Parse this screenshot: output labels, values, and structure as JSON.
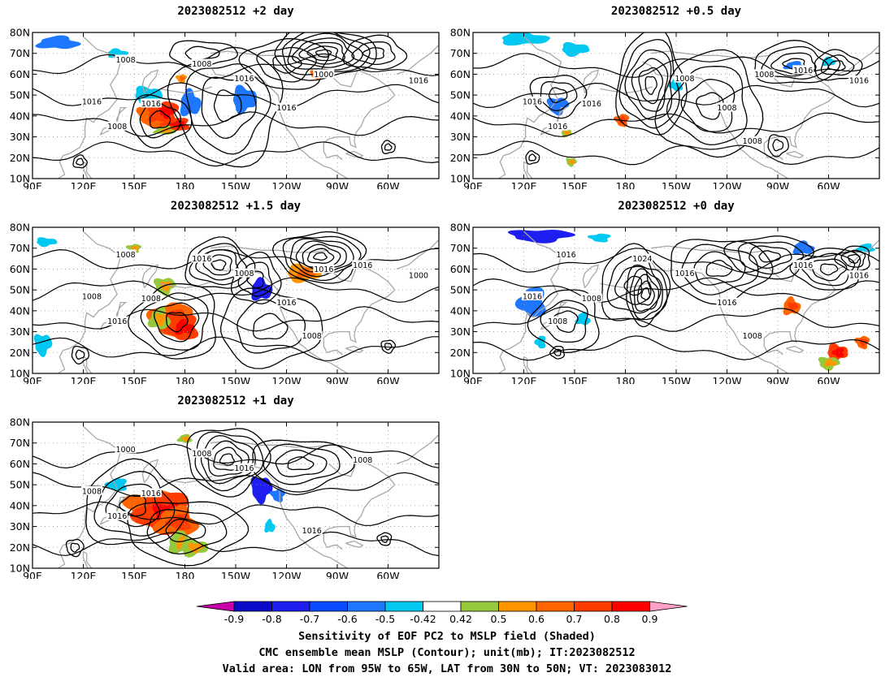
{
  "panels": [
    {
      "id": "p-plus2",
      "title": "2023082512 +2 day"
    },
    {
      "id": "p-plus05",
      "title": "2023082512 +0.5 day"
    },
    {
      "id": "p-plus15",
      "title": "2023082512 +1.5 day"
    },
    {
      "id": "p-plus0",
      "title": "2023082512 +0 day"
    },
    {
      "id": "p-plus1",
      "title": "2023082512 +1 day"
    }
  ],
  "axes": {
    "lat_labels": [
      "80N",
      "70N",
      "60N",
      "50N",
      "40N",
      "30N",
      "20N",
      "10N"
    ],
    "lon_labels": [
      "90E",
      "120E",
      "150E",
      "180",
      "150W",
      "120W",
      "90W",
      "60W"
    ]
  },
  "contour_labels": {
    "p-plus2": [
      "1008",
      "1008",
      "1016",
      "1016",
      "1016",
      "1000",
      "1016",
      "1016",
      "1008"
    ],
    "p-plus05": [
      "1008",
      "1016",
      "1016",
      "1008",
      "1016",
      "1008",
      "1016",
      "1008",
      "1016"
    ],
    "p-plus15": [
      "1008",
      "1016",
      "1000",
      "1016",
      "1016",
      "1008",
      "1016",
      "1008",
      "1016",
      "1008",
      "1008"
    ],
    "p-plus0": [
      "1016",
      "1016",
      "1008",
      "1008",
      "1016",
      "1016",
      "1024",
      "1016",
      "1008",
      "1016"
    ],
    "p-plus1": [
      "1016",
      "1016",
      "1008",
      "1000",
      "1008",
      "1016",
      "1016",
      "1008"
    ]
  },
  "colorbar": {
    "labels": [
      "-0.9",
      "-0.8",
      "-0.7",
      "-0.6",
      "-0.5",
      "-0.42",
      "0.42",
      "0.5",
      "0.6",
      "0.7",
      "0.8",
      "0.9"
    ],
    "colors": [
      "#0a0ac8",
      "#1e1ef0",
      "#0a4bff",
      "#1e78ff",
      "#00c8f0",
      "#ffffff",
      "#96c83c",
      "#ff9600",
      "#ff6400",
      "#ff3c00",
      "#ff0000"
    ],
    "left_arrow_color": "#c800aa",
    "right_arrow_color": "#ffa0c8"
  },
  "caption": {
    "line1": "Sensitivity of EOF PC2 to MSLP field (Shaded)",
    "line2": "CMC ensemble mean MSLP (Contour); unit(mb); IT:2023082512",
    "line3": "Valid area: LON from 95W to 65W, LAT from 30N to 50N; VT: 2023083012"
  }
}
